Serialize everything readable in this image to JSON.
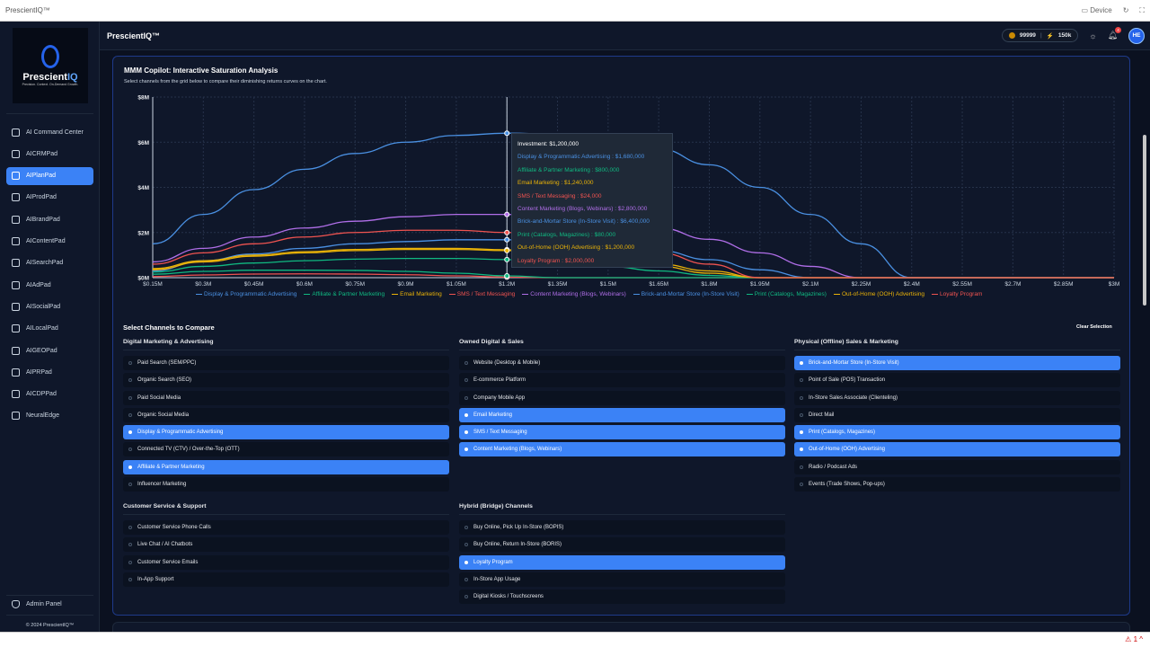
{
  "browser": {
    "title": "PrescientIQ™",
    "device": "Device",
    "warnings": "1"
  },
  "sidebar": {
    "items": [
      {
        "label": "AI Command Center"
      },
      {
        "label": "AICRMPad"
      },
      {
        "label": "AIPlanPad",
        "active": true
      },
      {
        "label": "AIProdPad"
      },
      {
        "label": "AIBrandPad"
      },
      {
        "label": "AIContentPad"
      },
      {
        "label": "AISearchPad"
      },
      {
        "label": "AIAdPad"
      },
      {
        "label": "AISocialPad"
      },
      {
        "label": "AILocalPad"
      },
      {
        "label": "AIGEOPad"
      },
      {
        "label": "AIPRPad"
      },
      {
        "label": "AICDPPad"
      },
      {
        "label": "NeuralEdge"
      }
    ],
    "admin": "Admin Panel",
    "copyright": "© 2024 PrescientIQ™",
    "logo_text": "PrescientIQ",
    "logo_tagline": "Precision. Context. On-Demand Growth."
  },
  "header": {
    "title": "PrescientIQ™",
    "coins": "99999",
    "energy": "150k",
    "notifications": "4",
    "avatar": "HE"
  },
  "card": {
    "title": "MMM Copilot: Interactive Saturation Analysis",
    "subtitle": "Select channels from the grid below to compare their diminishing returns curves on the chart."
  },
  "chart_data": {
    "type": "line",
    "title": "MMM Copilot: Interactive Saturation Analysis",
    "xlabel": "Investment",
    "ylabel": "",
    "x": [
      0.15,
      0.3,
      0.45,
      0.6,
      0.75,
      0.9,
      1.05,
      1.2,
      1.35,
      1.5,
      1.65,
      1.8,
      1.95,
      2.1,
      2.25,
      2.4,
      2.55,
      2.7,
      2.85,
      3.0
    ],
    "x_ticks": [
      "$0.15M",
      "$0.3M",
      "$0.45M",
      "$0.6M",
      "$0.75M",
      "$0.9M",
      "$1.05M",
      "$1.2M",
      "$1.35M",
      "$1.5M",
      "$1.65M",
      "$1.8M",
      "$1.95M",
      "$2.1M",
      "$2.25M",
      "$2.4M",
      "$2.55M",
      "$2.7M",
      "$2.85M",
      "$3M"
    ],
    "y_ticks": [
      "$0M",
      "$2M",
      "$4M",
      "$6M",
      "$8M"
    ],
    "ylim": [
      0,
      8
    ],
    "xlim": [
      0.15,
      3.0
    ],
    "grid": true,
    "legend": "bottom",
    "series": [
      {
        "name": "Display & Programmatic Advertising",
        "color": "#4a90e2",
        "values": [
          0.3,
          0.75,
          1.05,
          1.3,
          1.5,
          1.6,
          1.68,
          1.68,
          1.6,
          1.45,
          1.2,
          0.8,
          0.35,
          0,
          0,
          0,
          0,
          0,
          0,
          0
        ]
      },
      {
        "name": "Affiliate & Partner Marketing",
        "color": "#10b981",
        "values": [
          0.25,
          0.5,
          0.65,
          0.75,
          0.82,
          0.85,
          0.85,
          0.8,
          0.7,
          0.5,
          0.3,
          0.1,
          0,
          0,
          0,
          0,
          0,
          0,
          0,
          0
        ]
      },
      {
        "name": "Email Marketing",
        "color": "#eab308",
        "values": [
          0.4,
          0.75,
          1.0,
          1.15,
          1.25,
          1.3,
          1.3,
          1.24,
          1.1,
          0.9,
          0.6,
          0.3,
          0,
          0,
          0,
          0,
          0,
          0,
          0,
          0
        ]
      },
      {
        "name": "SMS / Text Messaging",
        "color": "#ef5350",
        "values": [
          0.05,
          0.12,
          0.16,
          0.17,
          0.16,
          0.13,
          0.08,
          0.024,
          0,
          0,
          0,
          0,
          0,
          0,
          0,
          0,
          0,
          0,
          0,
          0
        ]
      },
      {
        "name": "Content Marketing (Blogs, Webinars)",
        "color": "#b06ee8",
        "values": [
          0.7,
          1.3,
          1.8,
          2.2,
          2.5,
          2.7,
          2.8,
          2.8,
          2.7,
          2.5,
          2.2,
          1.7,
          1.1,
          0.5,
          0,
          0,
          0,
          0,
          0,
          0
        ]
      },
      {
        "name": "Brick-and-Mortar Store (In-Store Visit)",
        "color": "#4a90e2",
        "values": [
          1.5,
          2.8,
          3.9,
          4.8,
          5.5,
          6.0,
          6.3,
          6.4,
          6.35,
          6.1,
          5.7,
          5.0,
          4.0,
          2.8,
          1.5,
          0,
          0,
          0,
          0,
          0
        ]
      },
      {
        "name": "Print (Catalogs, Magazines)",
        "color": "#10b981",
        "values": [
          0.15,
          0.28,
          0.33,
          0.33,
          0.32,
          0.28,
          0.2,
          0.08,
          0,
          0,
          0,
          0,
          0,
          0,
          0,
          0,
          0,
          0,
          0,
          0
        ]
      },
      {
        "name": "Out-of-Home (OOH) Advertising",
        "color": "#eab308",
        "values": [
          0.35,
          0.7,
          0.95,
          1.1,
          1.2,
          1.25,
          1.25,
          1.2,
          1.05,
          0.8,
          0.5,
          0.2,
          0,
          0,
          0,
          0,
          0,
          0,
          0,
          0
        ]
      },
      {
        "name": "Loyalty Program",
        "color": "#ef5350",
        "values": [
          0.6,
          1.1,
          1.5,
          1.8,
          2.0,
          2.1,
          2.1,
          2.0,
          1.8,
          1.5,
          1.1,
          0.6,
          0,
          0,
          0,
          0,
          0,
          0,
          0,
          0
        ]
      }
    ],
    "tooltip": {
      "header": "Investment: $1,200,000",
      "rows": [
        "Display & Programmatic Advertising : $1,680,000",
        "Affiliate & Partner Marketing : $800,000",
        "Email Marketing : $1,240,000",
        "SMS / Text Messaging : $24,000",
        "Content Marketing (Blogs, Webinars) : $2,800,000",
        "Brick-and-Mortar Store (In-Store Visit) : $6,400,000",
        "Print (Catalogs, Magazines) : $80,000",
        "Out-of-Home (OOH) Advertising : $1,200,000",
        "Loyalty Program : $2,000,000"
      ]
    }
  },
  "selector": {
    "title": "Select Channels to Compare",
    "clear": "Clear Selection",
    "groups": [
      {
        "title": "Digital Marketing & Advertising",
        "items": [
          {
            "label": "Paid Search (SEM/PPC)"
          },
          {
            "label": "Organic Search (SEO)"
          },
          {
            "label": "Paid Social Media"
          },
          {
            "label": "Organic Social Media"
          },
          {
            "label": "Display & Programmatic Advertising",
            "selected": true
          },
          {
            "label": "Connected TV (CTV) / Over-the-Top (OTT)"
          },
          {
            "label": "Affiliate & Partner Marketing",
            "selected": true
          },
          {
            "label": "Influencer Marketing"
          }
        ]
      },
      {
        "title": "Owned Digital & Sales",
        "items": [
          {
            "label": "Website (Desktop & Mobile)"
          },
          {
            "label": "E-commerce Platform"
          },
          {
            "label": "Company Mobile App"
          },
          {
            "label": "Email Marketing",
            "selected": true
          },
          {
            "label": "SMS / Text Messaging",
            "selected": true
          },
          {
            "label": "Content Marketing (Blogs, Webinars)",
            "selected": true
          }
        ]
      },
      {
        "title": "Physical (Offline) Sales & Marketing",
        "items": [
          {
            "label": "Brick-and-Mortar Store (In-Store Visit)",
            "selected": true
          },
          {
            "label": "Point of Sale (POS) Transaction"
          },
          {
            "label": "In-Store Sales Associate (Clienteling)"
          },
          {
            "label": "Direct Mail"
          },
          {
            "label": "Print (Catalogs, Magazines)",
            "selected": true
          },
          {
            "label": "Out-of-Home (OOH) Advertising",
            "selected": true
          },
          {
            "label": "Radio / Podcast Ads"
          },
          {
            "label": "Events (Trade Shows, Pop-ups)"
          }
        ]
      },
      {
        "title": "Customer Service & Support",
        "items": [
          {
            "label": "Customer Service Phone Calls"
          },
          {
            "label": "Live Chat / AI Chatbots"
          },
          {
            "label": "Customer Service Emails"
          },
          {
            "label": "In-App Support"
          }
        ]
      },
      {
        "title": "Hybrid (Bridge) Channels",
        "items": [
          {
            "label": "Buy Online, Pick Up In-Store (BOPIS)"
          },
          {
            "label": "Buy Online, Return In-Store (BORIS)"
          },
          {
            "label": "Loyalty Program",
            "selected": true
          },
          {
            "label": "In-Store App Usage"
          },
          {
            "label": "Digital Kiosks / Touchscreens"
          }
        ]
      }
    ]
  }
}
